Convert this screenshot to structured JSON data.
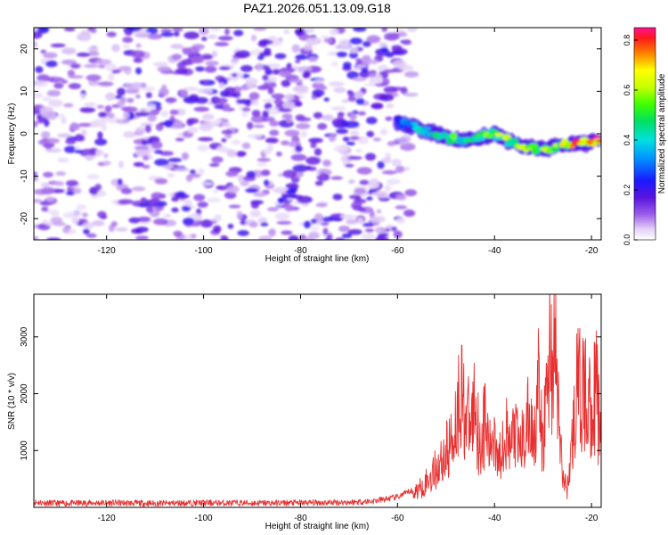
{
  "title": "PAZ1.2026.051.13.09.G18",
  "chart_data": [
    {
      "type": "heatmap",
      "panel": "spectrogram",
      "title": "PAZ1.2026.051.13.09.G18",
      "xlabel": "Height of straight line (km)",
      "ylabel": "Frequency (Hz)",
      "xlim": [
        -135,
        -18
      ],
      "ylim": [
        -25,
        25
      ],
      "xticks": [
        -120,
        -100,
        -80,
        -60,
        -40,
        -20
      ],
      "yticks": [
        -20,
        -10,
        0,
        10,
        20
      ],
      "noise_region": {
        "x_range": [
          -135,
          -57
        ],
        "y_range": [
          -25,
          25
        ],
        "amplitude_range": [
          0.03,
          0.22
        ]
      },
      "signal_track": {
        "x": [
          -60,
          -55,
          -50,
          -45,
          -40,
          -35,
          -30,
          -25,
          -20,
          -18
        ],
        "y": [
          3,
          1,
          -1,
          -1.5,
          0,
          -3,
          -3.5,
          -2.5,
          -2,
          -1.5
        ],
        "amplitude": [
          0.25,
          0.4,
          0.5,
          0.5,
          0.55,
          0.55,
          0.6,
          0.65,
          0.85,
          0.8
        ]
      },
      "colorbar": {
        "label": "Normalized spectral amplitude",
        "range": [
          0.0,
          0.85
        ],
        "ticks": [
          "0.0",
          "0.2",
          "0.4",
          "0.6",
          "0.8"
        ]
      }
    },
    {
      "type": "line",
      "panel": "snr",
      "xlabel": "Height of straight line (km)",
      "ylabel": "SNR (10 * v/v)",
      "xlim": [
        -135,
        -18
      ],
      "ylim": [
        0,
        3750
      ],
      "xticks": [
        -120,
        -100,
        -80,
        -60,
        -40,
        -20
      ],
      "yticks": [
        1000,
        2000,
        3000
      ],
      "series": [
        {
          "name": "SNR",
          "color": "#e83030",
          "x": [
            -135,
            -130,
            -120,
            -110,
            -100,
            -90,
            -80,
            -70,
            -65,
            -60,
            -57,
            -55,
            -53,
            -51,
            -49,
            -47.5,
            -47,
            -46.5,
            -45,
            -44,
            -43,
            -42,
            -41,
            -40,
            -39,
            -38,
            -37,
            -36,
            -35,
            -34,
            -33,
            -32,
            -31,
            -30,
            -29.5,
            -29,
            -28.5,
            -28,
            -27.5,
            -27,
            -26.5,
            -26,
            -25,
            -24,
            -23,
            -22,
            -21,
            -20,
            -19,
            -18
          ],
          "values": [
            90,
            70,
            80,
            70,
            80,
            75,
            80,
            90,
            110,
            180,
            300,
            450,
            700,
            1000,
            1400,
            2200,
            2750,
            2300,
            1700,
            2400,
            1300,
            1900,
            1200,
            1800,
            1000,
            1900,
            1200,
            1700,
            1300,
            1500,
            1900,
            1600,
            2600,
            1200,
            2300,
            2700,
            3750,
            3000,
            3500,
            2600,
            1500,
            700,
            400,
            1400,
            2600,
            2500,
            2400,
            2200,
            2600,
            1300
          ]
        }
      ]
    }
  ]
}
